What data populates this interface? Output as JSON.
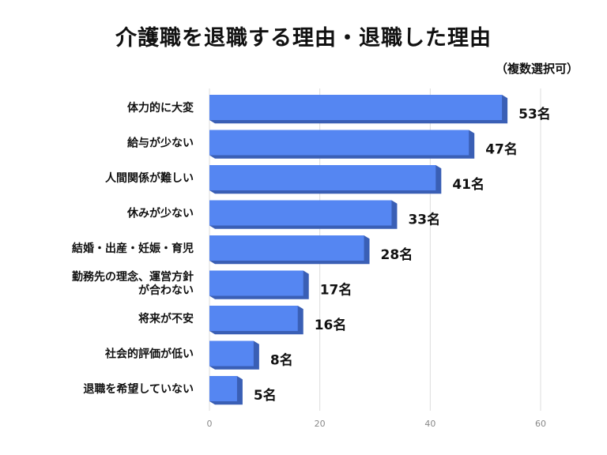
{
  "chart_data": {
    "type": "bar",
    "orientation": "horizontal",
    "title": "介護職を退職する理由・退職した理由",
    "subtitle": "（複数選択可）",
    "categories": [
      "体力的に大変",
      "給与が少ない",
      "人間関係が難しい",
      "休みが少ない",
      "結婚・出産・妊娠・育児",
      [
        "勤務先の理念、運営方針",
        "が合わない"
      ],
      "将来が不安",
      "社会的評価が低い",
      "退職を希望していない"
    ],
    "values": [
      53,
      47,
      41,
      33,
      28,
      17,
      16,
      8,
      5
    ],
    "value_suffix": "名",
    "xlim": [
      0,
      60
    ],
    "xticks": [
      0,
      20,
      40,
      60
    ],
    "grid": true,
    "bar_color": "#5586f2",
    "bar_shadow_color": "#3a5fb5",
    "legend": "none"
  }
}
